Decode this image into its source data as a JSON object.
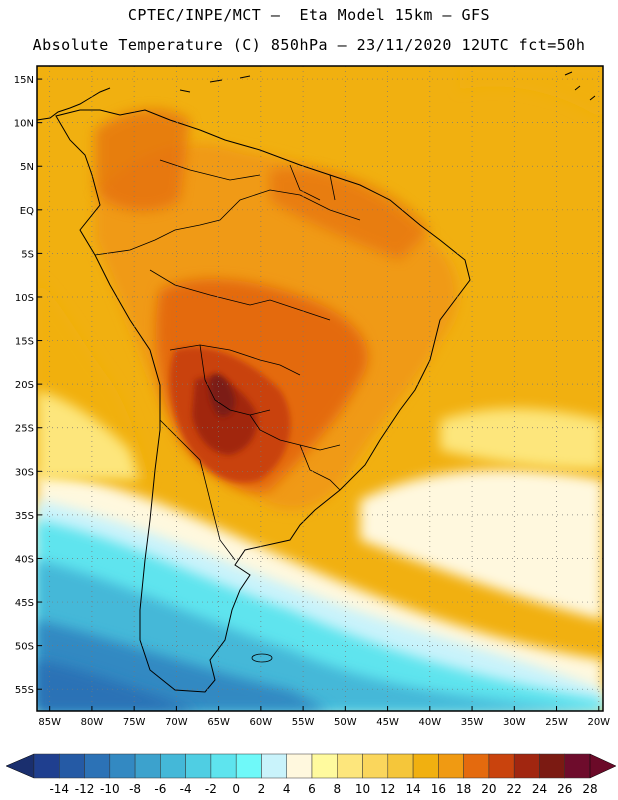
{
  "header": {
    "line1": "CPTEC/INPE/MCT –  Eta Model 15km – GFS",
    "line2": "Absolute Temperature (C) 850hPa – 23/11/2020 12UTC fct=50h"
  },
  "map": {
    "region": "South America",
    "lat_labels": [
      "15N",
      "10N",
      "5N",
      "EQ",
      "5S",
      "10S",
      "15S",
      "20S",
      "25S",
      "30S",
      "35S",
      "40S",
      "45S",
      "50S",
      "55S"
    ],
    "lon_labels": [
      "85W",
      "80W",
      "75W",
      "70W",
      "65W",
      "60W",
      "55W",
      "50W",
      "45W",
      "40W",
      "35W",
      "30W",
      "25W",
      "20W"
    ],
    "lat_range": [
      -57.5,
      16.5
    ],
    "lon_range": [
      -86.5,
      -19.5
    ],
    "gridlines": true
  },
  "colorbar": {
    "labels": [
      "-14",
      "-12",
      "-10",
      "-8",
      "-6",
      "-4",
      "-2",
      "0",
      "2",
      "4",
      "6",
      "8",
      "10",
      "12",
      "14",
      "16",
      "18",
      "20",
      "22",
      "24",
      "26",
      "28"
    ],
    "colors": [
      "#1f3f8f",
      "#255aa5",
      "#2c72b6",
      "#3389c2",
      "#3ca2cd",
      "#44b8d8",
      "#4fcee3",
      "#5ee4ee",
      "#6ff9f9",
      "#c9f3fb",
      "#fff8de",
      "#fffa9e",
      "#fde67c",
      "#fad65c",
      "#f5c63a",
      "#f1b010",
      "#f09a12",
      "#e46a0e",
      "#c9430d",
      "#a12610",
      "#7b1a12",
      "#6e0c2c"
    ],
    "low_arrow_color": "#1a2f6e",
    "high_arrow_color": "#6b0a28"
  }
}
